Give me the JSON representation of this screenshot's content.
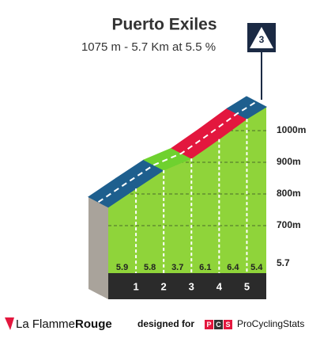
{
  "title": "Puerto Exiles",
  "subtitle": "1075 m - 5.7 Km at 5.5 %",
  "category": "3",
  "chart_data": {
    "type": "profile",
    "end_elevation": 1075,
    "segments": [
      {
        "gradient": 5.9,
        "color": "#1e5f8e"
      },
      {
        "gradient": 5.8,
        "color": "#1e5f8e"
      },
      {
        "gradient": 3.7,
        "color": "#6fd12f"
      },
      {
        "gradient": 6.1,
        "color": "#e3173e"
      },
      {
        "gradient": 6.4,
        "color": "#e3173e"
      },
      {
        "gradient": 5.4,
        "color": "#1e5f8e"
      }
    ],
    "xlim": [
      0,
      5.7
    ],
    "xticks": [
      1,
      2,
      3,
      4,
      5
    ],
    "ylim": [
      550,
      1100
    ],
    "yticks": [
      {
        "value": 700,
        "label": "700m"
      },
      {
        "value": 800,
        "label": "800m"
      },
      {
        "value": 900,
        "label": "900m"
      },
      {
        "value": 1000,
        "label": "1000m"
      }
    ],
    "grid": true
  },
  "footer": {
    "brand_light": "La Flamme",
    "brand_bold": "Rouge",
    "designed_for": "designed for",
    "pcs_letters": [
      "P",
      "C",
      "S"
    ],
    "pcs_name": "ProCyclingStats"
  }
}
